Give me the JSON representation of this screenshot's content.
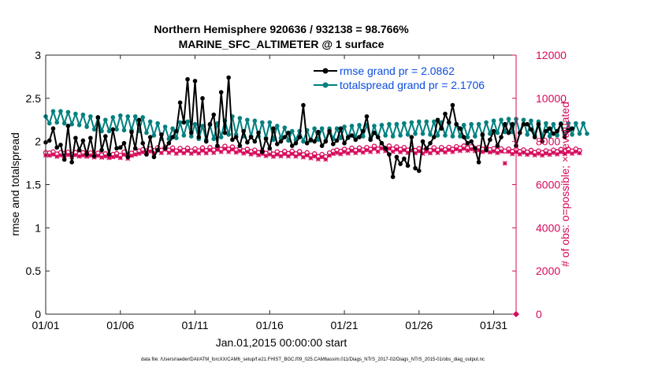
{
  "figure": {
    "title_line1": "Northern Hemisphere 920636 / 932138 = 98.766%",
    "title_line2": "MARINE_SFC_ALTIMETER @ 1 surface",
    "footer": "data file: /Users/raeder/DAI/ATM_forcXX/CAM6_setup/f.e21.FHIST_BGC.f09_025.CAM6assim.011/Diags_NTrS_2017-02/Diags_NTrS_2015-01/obs_diag_output.nc"
  },
  "colors": {
    "rmse": "#000000",
    "totalspread": "#00807f",
    "obs": "#d5095a",
    "legend_text": "#0b4de0",
    "axis": "#262626"
  },
  "chart_data": {
    "type": "line",
    "title": "Northern Hemisphere 920636 / 932138 = 98.766%",
    "subtitle": "MARINE_SFC_ALTIMETER @ 1 surface",
    "xlabel": "Jan.01,2015 00:00:00 start",
    "ylabel": "rmse and totalspread",
    "y2label": "# of obs: o=possible; ×=evaluated",
    "x_unit": "days since Jan.01,2015",
    "xlim": [
      0,
      31.5
    ],
    "ylim": [
      0,
      3
    ],
    "y2lim": [
      0,
      12000
    ],
    "x_ticks": [
      {
        "value": 0,
        "label": "01/01"
      },
      {
        "value": 5,
        "label": "01/06"
      },
      {
        "value": 10,
        "label": "01/11"
      },
      {
        "value": 15,
        "label": "01/16"
      },
      {
        "value": 20,
        "label": "01/21"
      },
      {
        "value": 25,
        "label": "01/26"
      },
      {
        "value": 30,
        "label": "01/31"
      }
    ],
    "y_ticks": [
      "0",
      "0.5",
      "1",
      "1.5",
      "2",
      "2.5",
      "3"
    ],
    "y2_ticks": [
      "0",
      "2000",
      "4000",
      "6000",
      "8000",
      "10000",
      "12000"
    ],
    "grid": false,
    "legend_position": "top-right",
    "series": [
      {
        "name": "rmse grand pr = 2.0862",
        "axis": "left",
        "values": [
          1.99,
          2.01,
          2.15,
          1.93,
          1.96,
          1.79,
          2.18,
          1.76,
          2.04,
          1.9,
          2.01,
          1.85,
          2.04,
          1.83,
          2.28,
          1.9,
          2.06,
          1.85,
          2.14,
          1.92,
          1.93,
          1.98,
          1.82,
          2.11,
          1.92,
          2.25,
          1.98,
          1.85,
          2.05,
          1.82,
          1.9,
          2.08,
          1.92,
          1.98,
          2.05,
          2.12,
          2.45,
          2.22,
          2.72,
          2.1,
          2.7,
          2.05,
          2.5,
          2.0,
          2.2,
          2.31,
          1.95,
          2.57,
          2.1,
          2.74,
          2.02,
          2.05,
          1.95,
          2.12,
          1.99,
          2.05,
          2.0,
          2.1,
          1.88,
          2.03,
          1.92,
          2.15,
          1.97,
          2.0,
          2.05,
          2.1,
          1.95,
          1.98,
          2.05,
          2.42,
          1.98,
          2.02,
          2.0,
          2.11,
          1.95,
          2.0,
          2.12,
          1.97,
          2.01,
          2.15,
          1.98,
          2.05,
          2.07,
          2.02,
          2.05,
          2.12,
          2.29,
          2.02,
          2.1,
          2.05,
          1.98,
          1.92,
          1.85,
          1.59,
          1.82,
          1.74,
          1.8,
          1.72,
          2.05,
          1.69,
          1.66,
          2.0,
          1.92,
          1.98,
          2.05,
          2.25,
          2.15,
          2.32,
          2.22,
          2.42,
          2.2,
          2.15,
          2.05,
          1.98,
          2.0,
          1.92,
          1.76,
          2.08,
          1.9,
          2.02,
          2.12,
          1.95,
          2.05,
          2.2,
          2.1,
          2.2,
          1.95,
          2.1,
          2.2,
          2.2,
          2.14,
          2.05,
          2.2,
          2.0,
          2.12,
          2.15,
          2.09,
          2.12,
          2.2,
          2.05,
          2.13,
          2.15
        ]
      },
      {
        "name": "totalspread grand pr = 2.1706",
        "axis": "left",
        "values": [
          2.29,
          2.21,
          2.35,
          2.22,
          2.35,
          2.21,
          2.34,
          2.2,
          2.32,
          2.19,
          2.31,
          2.17,
          2.29,
          2.14,
          2.27,
          2.12,
          2.25,
          2.12,
          2.28,
          2.14,
          2.3,
          2.13,
          2.29,
          2.13,
          2.29,
          2.12,
          2.28,
          2.1,
          2.23,
          2.07,
          2.21,
          2.03,
          2.17,
          2.03,
          2.15,
          2.04,
          2.22,
          2.07,
          2.23,
          2.06,
          2.2,
          2.03,
          2.18,
          2.02,
          2.19,
          2.03,
          2.21,
          2.05,
          2.24,
          2.08,
          2.29,
          2.08,
          2.27,
          2.06,
          2.25,
          2.06,
          2.24,
          2.06,
          2.22,
          2.04,
          2.22,
          2.02,
          2.18,
          2.04,
          2.16,
          2.01,
          2.12,
          2.02,
          2.12,
          2.0,
          2.13,
          2.01,
          2.15,
          2.02,
          2.15,
          2.01,
          2.15,
          2.03,
          2.15,
          2.04,
          2.17,
          2.04,
          2.18,
          2.05,
          2.19,
          2.06,
          2.19,
          2.04,
          2.18,
          2.05,
          2.19,
          2.07,
          2.2,
          2.06,
          2.2,
          2.07,
          2.21,
          2.08,
          2.22,
          2.09,
          2.23,
          2.09,
          2.23,
          2.08,
          2.23,
          2.07,
          2.22,
          2.07,
          2.22,
          2.06,
          2.2,
          2.06,
          2.19,
          2.05,
          2.2,
          2.06,
          2.2,
          2.07,
          2.22,
          2.09,
          2.24,
          2.1,
          2.25,
          2.11,
          2.26,
          2.11,
          2.26,
          2.1,
          2.25,
          2.08,
          2.24,
          2.07,
          2.23,
          2.06,
          2.21,
          2.06,
          2.2,
          2.07,
          2.21,
          2.08,
          2.21,
          2.08,
          2.21,
          2.09,
          2.21,
          2.09
        ]
      },
      {
        "name": "# of obs possible",
        "axis": "right",
        "marker": "o",
        "values": [
          7480,
          7470,
          7520,
          7420,
          7480,
          7450,
          7500,
          7400,
          7490,
          7430,
          7480,
          7420,
          7470,
          7390,
          7460,
          7380,
          7430,
          7360,
          7400,
          7440,
          7360,
          7510,
          7330,
          7460,
          7520,
          7560,
          7620,
          7570,
          7660,
          7580,
          7710,
          7590,
          7740,
          7600,
          7700,
          7560,
          7680,
          7580,
          7690,
          7560,
          7660,
          7570,
          7700,
          7580,
          7720,
          7600,
          7740,
          7640,
          7780,
          7640,
          7750,
          7610,
          7680,
          7570,
          7640,
          7530,
          7600,
          7490,
          7550,
          7450,
          7520,
          7420,
          7520,
          7440,
          7540,
          7440,
          7550,
          7430,
          7530,
          7390,
          7480,
          7350,
          7430,
          7300,
          7400,
          7290,
          7470,
          7550,
          7600,
          7540,
          7640,
          7570,
          7690,
          7590,
          7700,
          7610,
          7720,
          7640,
          7780,
          7650,
          7800,
          7680,
          7790,
          7650,
          7750,
          7630,
          7720,
          7600,
          7700,
          7580,
          7670,
          7560,
          7660,
          7580,
          7710,
          7600,
          7720,
          7620,
          7730,
          7640,
          7760,
          7690,
          7790,
          7700,
          7760,
          7680,
          7720,
          7640,
          7700,
          7620,
          7670,
          7590,
          7660,
          7560,
          7650,
          7540,
          7630,
          7530,
          7610,
          7510,
          7590,
          7490,
          7560,
          7480,
          7570,
          7510,
          7600,
          7530,
          7630,
          7550,
          7640,
          7560,
          7650,
          7580
        ]
      },
      {
        "name": "# of obs evaluated",
        "axis": "right",
        "marker": "x",
        "values": [
          7360,
          7350,
          7400,
          7300,
          7360,
          7330,
          7380,
          7280,
          7370,
          7310,
          7360,
          7300,
          7350,
          7270,
          7340,
          7260,
          7310,
          7240,
          7280,
          7320,
          7240,
          7390,
          7210,
          7340,
          7400,
          7440,
          7500,
          7450,
          7540,
          7460,
          7590,
          7470,
          7620,
          7480,
          7580,
          7440,
          7560,
          7460,
          7570,
          7440,
          7540,
          7450,
          7580,
          7460,
          7600,
          7480,
          7620,
          7520,
          7660,
          7520,
          7630,
          7490,
          7560,
          7450,
          7520,
          7410,
          7480,
          7370,
          7430,
          7330,
          7400,
          7300,
          7400,
          7320,
          7420,
          7320,
          7430,
          7310,
          7410,
          7270,
          7360,
          7230,
          7310,
          7180,
          7280,
          7170,
          7350,
          7430,
          7480,
          7420,
          7520,
          7450,
          7570,
          7470,
          7580,
          7490,
          7600,
          7520,
          7660,
          7530,
          7680,
          7560,
          7670,
          7530,
          7630,
          7510,
          7600,
          7480,
          7580,
          7460,
          7550,
          7440,
          7540,
          7460,
          7590,
          7480,
          7600,
          7500,
          7610,
          7520,
          7640,
          7570,
          7670,
          7580,
          7640,
          7560,
          7600,
          7520,
          7580,
          7500,
          7550,
          7470,
          7540,
          6990,
          7530,
          7420,
          7510,
          7410,
          7490,
          7390,
          7470,
          7370,
          7440,
          7360,
          7450,
          7390,
          7480,
          7410,
          7510,
          7430,
          7520,
          7440,
          7530,
          7460
        ]
      }
    ]
  }
}
